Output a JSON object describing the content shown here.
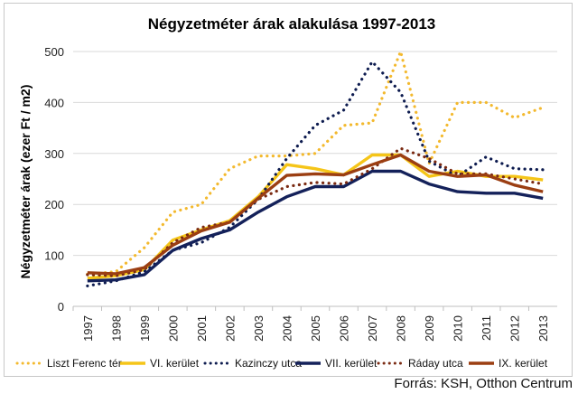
{
  "chart_data": {
    "type": "line",
    "title": "Négyzetméter árak alakulása 1997-2013",
    "ylabel": "Négyzetméter árak (ezer Ft / m2)",
    "xlabel": "",
    "ylim": [
      0,
      500
    ],
    "yticks": [
      "0",
      "100",
      "200",
      "300",
      "400",
      "500"
    ],
    "grid": true,
    "legend_position": "bottom",
    "categories": [
      "1997",
      "1998",
      "1999",
      "2000",
      "2001",
      "2002",
      "2003",
      "2004",
      "2005",
      "2006",
      "2007",
      "2008",
      "2009",
      "2010",
      "2011",
      "2012",
      "2013"
    ],
    "series": [
      {
        "name": "Liszt Ferenc tér",
        "color": "#f3b92e",
        "style": "dotted",
        "values": [
          63,
          68,
          115,
          185,
          200,
          270,
          295,
          295,
          300,
          355,
          360,
          500,
          280,
          400,
          400,
          370,
          390
        ]
      },
      {
        "name": "VI. kerület",
        "color": "#f5c518",
        "style": "solid",
        "values": [
          55,
          60,
          72,
          130,
          150,
          168,
          215,
          278,
          270,
          258,
          297,
          297,
          255,
          265,
          255,
          255,
          248
        ]
      },
      {
        "name": "Kazinczy utca",
        "color": "#0d1b4f",
        "style": "dotted",
        "values": [
          40,
          50,
          68,
          110,
          125,
          155,
          210,
          290,
          355,
          385,
          480,
          420,
          285,
          255,
          293,
          270,
          268
        ]
      },
      {
        "name": "VII. kerület",
        "color": "#14215a",
        "style": "solid",
        "values": [
          50,
          52,
          62,
          110,
          133,
          150,
          185,
          215,
          235,
          235,
          265,
          265,
          240,
          225,
          222,
          222,
          212
        ]
      },
      {
        "name": "Ráday utca",
        "color": "#7a2a12",
        "style": "dotted",
        "values": [
          62,
          60,
          72,
          125,
          155,
          165,
          210,
          235,
          243,
          240,
          270,
          310,
          290,
          260,
          260,
          250,
          240
        ]
      },
      {
        "name": "IX. kerület",
        "color": "#9b3e12",
        "style": "solid",
        "values": [
          66,
          64,
          76,
          120,
          148,
          165,
          212,
          257,
          260,
          258,
          278,
          297,
          265,
          255,
          258,
          238,
          225
        ]
      }
    ]
  },
  "source": "Forrás: KSH, Otthon Centrum"
}
